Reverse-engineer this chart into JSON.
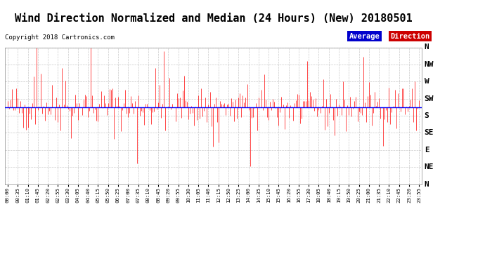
{
  "title": "Wind Direction Normalized and Median (24 Hours) (New) 20180501",
  "copyright": "Copyright 2018 Cartronics.com",
  "background_color": "#ffffff",
  "plot_bg_color": "#ffffff",
  "grid_color": "#bbbbbb",
  "bar_color": "#ff0000",
  "median_color": "#0000ff",
  "median_value": 4.5,
  "ytick_labels": [
    "N",
    "NW",
    "W",
    "SW",
    "S",
    "SE",
    "E",
    "NE",
    "N"
  ],
  "ytick_values": [
    8,
    7,
    6,
    5,
    4,
    3,
    2,
    1,
    0
  ],
  "ylim": [
    0,
    8
  ],
  "legend_avg_color": "#0000cc",
  "legend_dir_color": "#cc0000",
  "legend_avg_text": "Average",
  "legend_dir_text": "Direction",
  "title_fontsize": 11,
  "axis_fontsize": 8,
  "n_points": 288,
  "tick_interval_minutes": 35,
  "data_interval_minutes": 5,
  "noise_std": 0.7,
  "noise_base": 4.5,
  "seed": 42
}
